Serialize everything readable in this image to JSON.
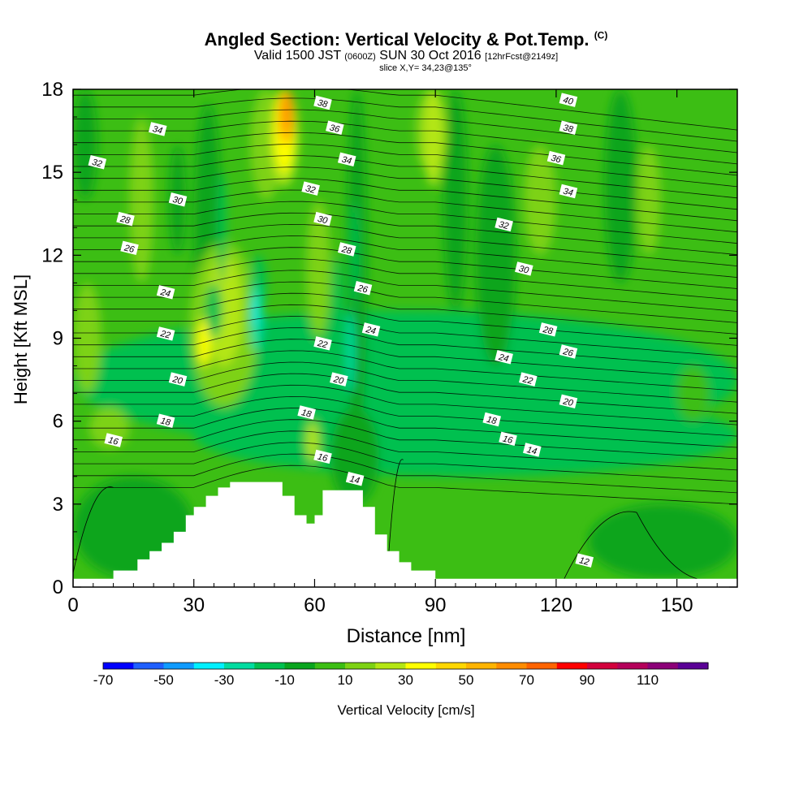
{
  "title": {
    "main": "Angled Section: Vertical Velocity & Pot.Temp.",
    "copyright": "(C)",
    "valid_prefix": "Valid 1500 JST",
    "valid_zulu": "(0600Z)",
    "valid_date": "SUN 30 Oct 2016",
    "forecast": "[12hrFcst@2149z]",
    "slice": "slice X,Y= 34,23@135°"
  },
  "chart_data": {
    "type": "heatmap",
    "xlabel": "Distance [nm]",
    "ylabel": "Height [Kft MSL]",
    "xlim": [
      0,
      165
    ],
    "ylim": [
      0,
      18
    ],
    "x_ticks": [
      "0",
      "30",
      "60",
      "90",
      "120",
      "150"
    ],
    "y_ticks": [
      "0",
      "3",
      "6",
      "9",
      "12",
      "15",
      "18"
    ],
    "colorbar": {
      "label": "Vertical Velocity [cm/s]",
      "tick_labels": [
        "-70",
        "-50",
        "-30",
        "-10",
        "10",
        "30",
        "50",
        "70",
        "90",
        "110"
      ],
      "levels": [
        -70,
        -60,
        -50,
        -40,
        -30,
        -20,
        -10,
        0,
        10,
        20,
        30,
        40,
        50,
        60,
        70,
        80,
        90,
        100,
        110,
        120
      ],
      "colors": [
        "#0000ff",
        "#1f5fff",
        "#0f9bff",
        "#00f0ff",
        "#00dca0",
        "#00c050",
        "#0aa51e",
        "#3cbe14",
        "#7dd214",
        "#b4e614",
        "#ffff00",
        "#ffd700",
        "#ffb400",
        "#ff8c00",
        "#ff6400",
        "#ff0000",
        "#d2003c",
        "#b4005a",
        "#8c0078",
        "#5a0096"
      ]
    },
    "isotherm_labels": [
      {
        "x": 6,
        "y": 15.35,
        "text": "32"
      },
      {
        "x": 21,
        "y": 16.55,
        "text": "34"
      },
      {
        "x": 13,
        "y": 13.3,
        "text": "28"
      },
      {
        "x": 26,
        "y": 14.0,
        "text": "30"
      },
      {
        "x": 14,
        "y": 12.25,
        "text": "26"
      },
      {
        "x": 23,
        "y": 10.65,
        "text": "24"
      },
      {
        "x": 23,
        "y": 9.15,
        "text": "22"
      },
      {
        "x": 26,
        "y": 7.5,
        "text": "20"
      },
      {
        "x": 23,
        "y": 6.0,
        "text": "18"
      },
      {
        "x": 10,
        "y": 5.3,
        "text": "16"
      },
      {
        "x": 62,
        "y": 17.5,
        "text": "38"
      },
      {
        "x": 65,
        "y": 16.6,
        "text": "36"
      },
      {
        "x": 68,
        "y": 15.45,
        "text": "34"
      },
      {
        "x": 59,
        "y": 14.4,
        "text": "32"
      },
      {
        "x": 62,
        "y": 13.3,
        "text": "30"
      },
      {
        "x": 68,
        "y": 12.2,
        "text": "28"
      },
      {
        "x": 72,
        "y": 10.8,
        "text": "26"
      },
      {
        "x": 74,
        "y": 9.3,
        "text": "24"
      },
      {
        "x": 62,
        "y": 8.8,
        "text": "22"
      },
      {
        "x": 66,
        "y": 7.5,
        "text": "20"
      },
      {
        "x": 58,
        "y": 6.3,
        "text": "18"
      },
      {
        "x": 62,
        "y": 4.7,
        "text": "16"
      },
      {
        "x": 70,
        "y": 3.9,
        "text": "14"
      },
      {
        "x": 123,
        "y": 17.6,
        "text": "40"
      },
      {
        "x": 123,
        "y": 16.6,
        "text": "38"
      },
      {
        "x": 120,
        "y": 15.5,
        "text": "36"
      },
      {
        "x": 123,
        "y": 14.3,
        "text": "34"
      },
      {
        "x": 107,
        "y": 13.1,
        "text": "32"
      },
      {
        "x": 112,
        "y": 11.5,
        "text": "30"
      },
      {
        "x": 118,
        "y": 9.3,
        "text": "28"
      },
      {
        "x": 123,
        "y": 8.5,
        "text": "26"
      },
      {
        "x": 107,
        "y": 8.3,
        "text": "24"
      },
      {
        "x": 113,
        "y": 7.5,
        "text": "22"
      },
      {
        "x": 123,
        "y": 6.7,
        "text": "20"
      },
      {
        "x": 104,
        "y": 6.05,
        "text": "18"
      },
      {
        "x": 108,
        "y": 5.35,
        "text": "16"
      },
      {
        "x": 114,
        "y": 4.95,
        "text": "14"
      },
      {
        "x": 127,
        "y": 0.95,
        "text": "12"
      }
    ]
  }
}
